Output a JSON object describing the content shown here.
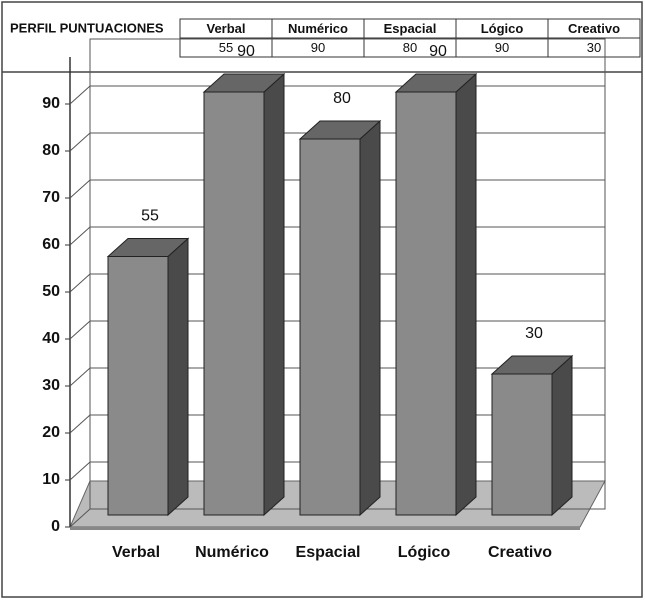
{
  "chart_data": {
    "type": "bar3d",
    "title": "PERFIL PUNTUACIONES",
    "categories": [
      "Verbal",
      "Numérico",
      "Espacial",
      "Lógico",
      "Creativo"
    ],
    "values": [
      55,
      90,
      80,
      90,
      30
    ],
    "color": "#8a8a8a",
    "ylim": [
      0,
      100
    ],
    "yticks": [
      0,
      10,
      20,
      30,
      40,
      50,
      60,
      70,
      80,
      90
    ],
    "grid": true
  }
}
